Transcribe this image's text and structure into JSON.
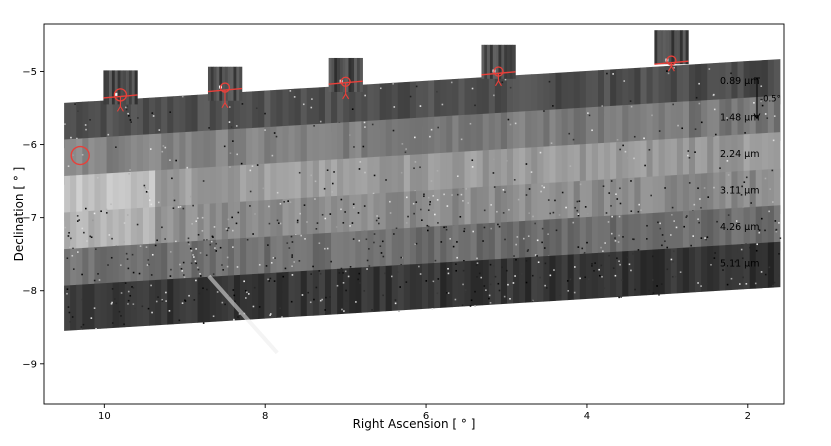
{
  "chart_data": {
    "type": "image",
    "xlabel": "Right Ascension [ ° ]",
    "ylabel": "Declination [ ° ]",
    "xlim": [
      10.75,
      1.55
    ],
    "ylim": [
      -9.55,
      -4.35
    ],
    "x_ticks": [
      10,
      8,
      6,
      4,
      2
    ],
    "x_tick_labels": [
      "10",
      "8",
      "6",
      "4",
      "2"
    ],
    "y_ticks": [
      -5,
      -6,
      -7,
      -8,
      -9
    ],
    "y_tick_labels": [
      "−5",
      "−6",
      "−7",
      "−8",
      "−9"
    ],
    "grid": false,
    "bands": [
      {
        "label": "0.89 µm",
        "dec_left": -6.05,
        "dec_right": -5.45
      },
      {
        "label": "1.48 µm",
        "dec_left": -6.55,
        "dec_right": -5.95
      },
      {
        "label": "2.24 µm",
        "dec_left": -7.05,
        "dec_right": -6.45
      },
      {
        "label": "3.11 µm",
        "dec_left": -7.55,
        "dec_right": -6.95
      },
      {
        "label": "4.26 µm",
        "dec_left": -8.05,
        "dec_right": -7.45
      },
      {
        "label": "5.11 µm",
        "dec_left": -8.55,
        "dec_right": -7.95
      }
    ],
    "band_shading": [
      0.32,
      0.52,
      0.62,
      0.56,
      0.44,
      0.22
    ],
    "band_x_range": [
      10.5,
      1.6
    ],
    "offset_annotation": "-0.5°",
    "circled_source": {
      "ra": 10.3,
      "dec": -6.15
    },
    "insets": [
      {
        "ra": 9.8,
        "dec": -5.45,
        "source_dec": -5.32
      },
      {
        "ra": 8.5,
        "dec": -5.4,
        "source_dec": -5.22
      },
      {
        "ra": 7.0,
        "dec": -5.28,
        "source_dec": -5.14
      },
      {
        "ra": 5.1,
        "dec": -5.1,
        "source_dec": -5.0
      },
      {
        "ra": 2.95,
        "dec": -4.9,
        "source_dec": -4.85
      }
    ],
    "accent_color": "#e8403a"
  }
}
